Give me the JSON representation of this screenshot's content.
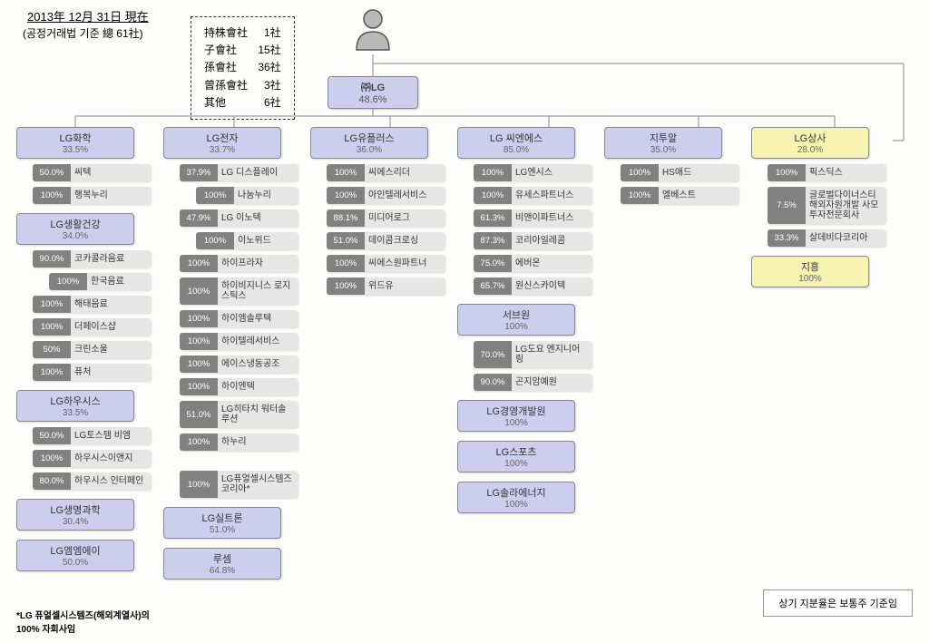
{
  "header": {
    "title": "2013年 12月 31日 現在",
    "sub": "(공정거래법 기준 總 61社)"
  },
  "summary": [
    {
      "label": "持株會社",
      "count": "1社"
    },
    {
      "label": "子會社",
      "count": "15社"
    },
    {
      "label": "孫會社",
      "count": "36社"
    },
    {
      "label": "曾孫會社",
      "count": "3社"
    },
    {
      "label": "其他",
      "count": "6社"
    }
  ],
  "root": {
    "name": "㈜LG",
    "pct": "48.6%"
  },
  "colors": {
    "branch_bg": "#cdcdee",
    "yellow_bg": "#f7f3b3",
    "leaf_pct_bg": "#818181",
    "leaf_lbl_bg": "#e6e6e6"
  },
  "columns": [
    {
      "groups": [
        {
          "head": {
            "name": "LG화학",
            "pct": "33.5%"
          },
          "leaves": [
            {
              "pct": "50.0%",
              "lbl": "씨텍"
            },
            {
              "pct": "100%",
              "lbl": "행복누리"
            }
          ]
        },
        {
          "head": {
            "name": "LG생활건강",
            "pct": "34.0%"
          },
          "leaves": [
            {
              "pct": "90.0%",
              "lbl": "코카콜라음료"
            },
            {
              "pct": "100%",
              "lbl": "한국음료",
              "nested": true
            },
            {
              "pct": "100%",
              "lbl": "해태음료"
            },
            {
              "pct": "100%",
              "lbl": "더페이스샵"
            },
            {
              "pct": "50%",
              "lbl": "크린소울"
            },
            {
              "pct": "100%",
              "lbl": "퓨처"
            }
          ]
        },
        {
          "head": {
            "name": "LG하우시스",
            "pct": "33.5%"
          },
          "leaves": [
            {
              "pct": "50.0%",
              "lbl": "LG토스템 비엠"
            },
            {
              "pct": "100%",
              "lbl": "하우시스이앤지"
            },
            {
              "pct": "80.0%",
              "lbl": "하우시스 인터페인"
            }
          ]
        },
        {
          "head": {
            "name": "LG생명과학",
            "pct": "30.4%"
          }
        },
        {
          "head": {
            "name": "LG엠엠에이",
            "pct": "50.0%"
          }
        }
      ]
    },
    {
      "groups": [
        {
          "head": {
            "name": "LG전자",
            "pct": "33.7%"
          },
          "leaves": [
            {
              "pct": "37.9%",
              "lbl": "LG 디스플레이"
            },
            {
              "pct": "100%",
              "lbl": "나눔누리",
              "nested": true
            },
            {
              "pct": "47.9%",
              "lbl": "LG 이노텍"
            },
            {
              "pct": "100%",
              "lbl": "이노위드",
              "nested": true
            },
            {
              "pct": "100%",
              "lbl": "하이프라자"
            },
            {
              "pct": "100%",
              "lbl": "하이비지니스 로지스틱스"
            },
            {
              "pct": "100%",
              "lbl": "하이엠솔루텍"
            },
            {
              "pct": "100%",
              "lbl": "하이텔레서비스"
            },
            {
              "pct": "100%",
              "lbl": "에이스냉동공조"
            },
            {
              "pct": "100%",
              "lbl": "하이엔텍"
            },
            {
              "pct": "51.0%",
              "lbl": "LG히타치 워터솔루션"
            },
            {
              "pct": "100%",
              "lbl": "하누리"
            }
          ],
          "extra": [
            {
              "pct": "100%",
              "lbl": "LG퓨얼셀시스템즈코리아*"
            }
          ]
        },
        {
          "head": {
            "name": "LG실트론",
            "pct": "51.0%"
          }
        },
        {
          "head": {
            "name": "루셈",
            "pct": "64.8%"
          }
        }
      ]
    },
    {
      "groups": [
        {
          "head": {
            "name": "LG유플러스",
            "pct": "36.0%"
          },
          "leaves": [
            {
              "pct": "100%",
              "lbl": "씨에스리더"
            },
            {
              "pct": "100%",
              "lbl": "아인텔레서비스"
            },
            {
              "pct": "88.1%",
              "lbl": "미디어로그"
            },
            {
              "pct": "51.0%",
              "lbl": "데이콤크로싱"
            },
            {
              "pct": "100%",
              "lbl": "씨에스원파트너"
            },
            {
              "pct": "100%",
              "lbl": "위드유"
            }
          ]
        }
      ]
    },
    {
      "groups": [
        {
          "head": {
            "name": "LG 씨엔에스",
            "pct": "85.0%"
          },
          "leaves": [
            {
              "pct": "100%",
              "lbl": "LG엔시스"
            },
            {
              "pct": "100%",
              "lbl": "유세스파트너스"
            },
            {
              "pct": "61.3%",
              "lbl": "비앤이파트너스"
            },
            {
              "pct": "87.3%",
              "lbl": "코리아일레콤"
            },
            {
              "pct": "75.0%",
              "lbl": "에버온"
            },
            {
              "pct": "65.7%",
              "lbl": "원신스카이텍"
            }
          ]
        },
        {
          "head": {
            "name": "서브원",
            "pct": "100%"
          },
          "leaves": [
            {
              "pct": "70.0%",
              "lbl": "LG도요 엔지니어링"
            },
            {
              "pct": "90.0%",
              "lbl": "곤지암예원"
            }
          ]
        },
        {
          "head": {
            "name": "LG경영개발원",
            "pct": "100%"
          }
        },
        {
          "head": {
            "name": "LG스포츠",
            "pct": "100%"
          }
        },
        {
          "head": {
            "name": "LG솔라에너지",
            "pct": "100%"
          }
        }
      ]
    },
    {
      "groups": [
        {
          "head": {
            "name": "지투알",
            "pct": "35.0%"
          },
          "leaves": [
            {
              "pct": "100%",
              "lbl": "HS애드"
            },
            {
              "pct": "100%",
              "lbl": "엘베스트"
            }
          ]
        }
      ]
    },
    {
      "groups": [
        {
          "head": {
            "name": "LG상사",
            "pct": "28.0%",
            "yellow": true
          },
          "leaves": [
            {
              "pct": "100%",
              "lbl": "픽스딕스"
            },
            {
              "pct": "7.5%",
              "lbl": "글로벌다이너스티 해외자원개발 사모투자전문회사"
            },
            {
              "pct": "33.3%",
              "lbl": "살데비다코리아"
            }
          ]
        },
        {
          "head": {
            "name": "지흥",
            "pct": "100%",
            "yellow": true
          }
        }
      ]
    }
  ],
  "footnotes": {
    "left": "*LG 퓨얼셀시스템즈(해외계열사)의\n   100% 자회사임",
    "right": "상기 지분율은 보통주 기준임"
  }
}
